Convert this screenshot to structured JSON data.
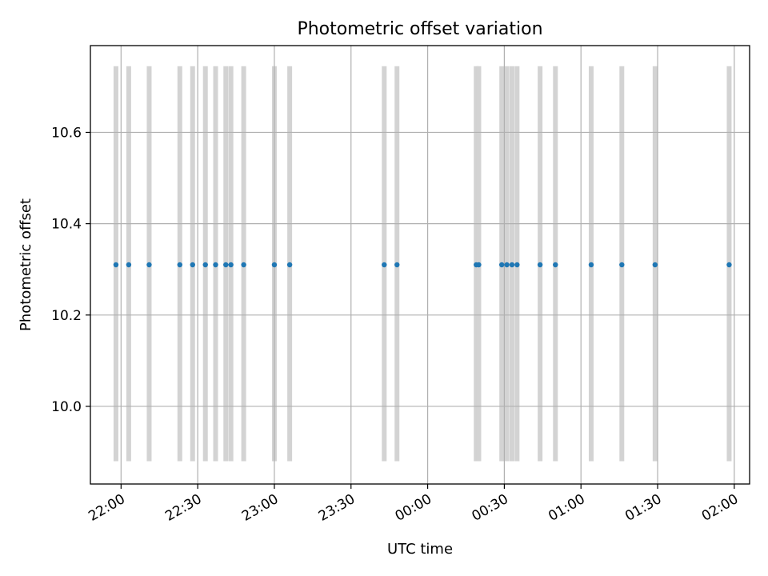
{
  "chart_data": {
    "type": "scatter",
    "title": "Photometric offset variation",
    "xlabel": "UTC time",
    "ylabel": "Photometric offset",
    "x_ticks": [
      "22:00",
      "22:30",
      "23:00",
      "23:30",
      "00:00",
      "00:30",
      "01:00",
      "01:30",
      "02:00"
    ],
    "y_ticks": [
      "10.0",
      "10.2",
      "10.4",
      "10.6"
    ],
    "xlim": [
      "21:48",
      "02:06"
    ],
    "ylim": [
      9.83,
      10.79
    ],
    "grid": true,
    "band_range": [
      9.88,
      10.745
    ],
    "series": [
      {
        "times": [
          "21:58",
          "22:03",
          "22:11",
          "22:23",
          "22:28",
          "22:33",
          "22:37",
          "22:41",
          "22:43",
          "22:48",
          "23:00",
          "23:06",
          "23:43",
          "23:48",
          "00:19",
          "00:20",
          "00:29",
          "00:31",
          "00:33",
          "00:35",
          "00:44",
          "00:50",
          "01:04",
          "01:16",
          "01:29",
          "01:58"
        ],
        "values": [
          10.31,
          10.31,
          10.31,
          10.31,
          10.31,
          10.31,
          10.31,
          10.31,
          10.31,
          10.31,
          10.31,
          10.31,
          10.31,
          10.31,
          10.31,
          10.31,
          10.31,
          10.31,
          10.31,
          10.31,
          10.31,
          10.31,
          10.31,
          10.31,
          10.31,
          10.31
        ],
        "color": "#1f77b4"
      }
    ],
    "band_color": "#d3d3d3"
  }
}
